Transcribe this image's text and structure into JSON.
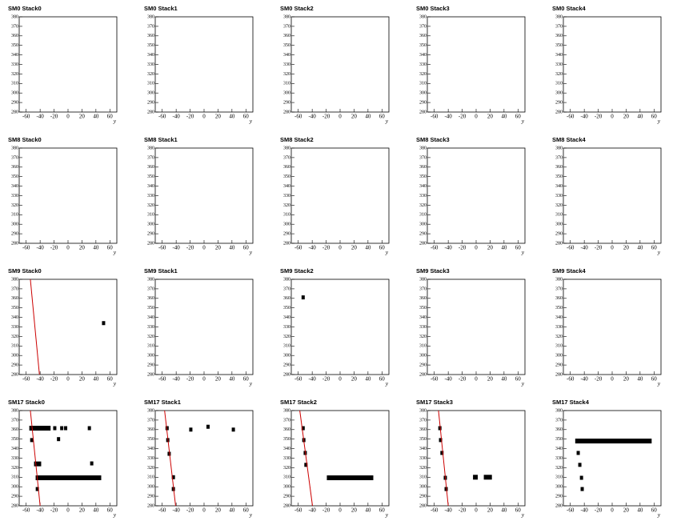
{
  "chart_data": [
    {
      "type": "scatter",
      "title": "SM0 Stack0",
      "x_label": "y",
      "xlim": [
        -70,
        70
      ],
      "ylim": [
        280,
        380
      ],
      "xticks": [
        -60,
        -40,
        -20,
        0,
        20,
        40,
        60
      ],
      "yticks": [
        280,
        290,
        300,
        310,
        320,
        330,
        340,
        350,
        360,
        370,
        380
      ]
    },
    {
      "type": "scatter",
      "title": "SM0 Stack1",
      "x_label": "y",
      "xlim": [
        -70,
        70
      ],
      "ylim": [
        280,
        380
      ],
      "xticks": [
        -60,
        -40,
        -20,
        0,
        20,
        40,
        60
      ],
      "yticks": [
        280,
        290,
        300,
        310,
        320,
        330,
        340,
        350,
        360,
        370,
        380
      ]
    },
    {
      "type": "scatter",
      "title": "SM0 Stack2",
      "x_label": "y",
      "xlim": [
        -70,
        70
      ],
      "ylim": [
        280,
        380
      ],
      "xticks": [
        -60,
        -40,
        -20,
        0,
        20,
        40,
        60
      ],
      "yticks": [
        280,
        290,
        300,
        310,
        320,
        330,
        340,
        350,
        360,
        370,
        380
      ]
    },
    {
      "type": "scatter",
      "title": "SM0 Stack3",
      "x_label": "y",
      "xlim": [
        -70,
        70
      ],
      "ylim": [
        280,
        380
      ],
      "xticks": [
        -60,
        -40,
        -20,
        0,
        20,
        40,
        60
      ],
      "yticks": [
        280,
        290,
        300,
        310,
        320,
        330,
        340,
        350,
        360,
        370,
        380
      ]
    },
    {
      "type": "scatter",
      "title": "SM0 Stack4",
      "x_label": "y",
      "xlim": [
        -70,
        70
      ],
      "ylim": [
        280,
        380
      ],
      "xticks": [
        -60,
        -40,
        -20,
        0,
        20,
        40,
        60
      ],
      "yticks": [
        280,
        290,
        300,
        310,
        320,
        330,
        340,
        350,
        360,
        370,
        380
      ]
    },
    {
      "type": "scatter",
      "title": "SM8 Stack0",
      "x_label": "y",
      "xlim": [
        -70,
        70
      ],
      "ylim": [
        280,
        380
      ],
      "xticks": [
        -60,
        -40,
        -20,
        0,
        20,
        40,
        60
      ],
      "yticks": [
        280,
        290,
        300,
        310,
        320,
        330,
        340,
        350,
        360,
        370,
        380
      ]
    },
    {
      "type": "scatter",
      "title": "SM8 Stack1",
      "x_label": "y",
      "xlim": [
        -70,
        70
      ],
      "ylim": [
        280,
        380
      ],
      "xticks": [
        -60,
        -40,
        -20,
        0,
        20,
        40,
        60
      ],
      "yticks": [
        280,
        290,
        300,
        310,
        320,
        330,
        340,
        350,
        360,
        370,
        380
      ]
    },
    {
      "type": "scatter",
      "title": "SM8 Stack2",
      "x_label": "y",
      "xlim": [
        -70,
        70
      ],
      "ylim": [
        280,
        380
      ],
      "xticks": [
        -60,
        -40,
        -20,
        0,
        20,
        40,
        60
      ],
      "yticks": [
        280,
        290,
        300,
        310,
        320,
        330,
        340,
        350,
        360,
        370,
        380
      ]
    },
    {
      "type": "scatter",
      "title": "SM8 Stack3",
      "x_label": "y",
      "xlim": [
        -70,
        70
      ],
      "ylim": [
        280,
        380
      ],
      "xticks": [
        -60,
        -40,
        -20,
        0,
        20,
        40,
        60
      ],
      "yticks": [
        280,
        290,
        300,
        310,
        320,
        330,
        340,
        350,
        360,
        370,
        380
      ]
    },
    {
      "type": "scatter",
      "title": "SM8 Stack4",
      "x_label": "y",
      "xlim": [
        -70,
        70
      ],
      "ylim": [
        280,
        380
      ],
      "xticks": [
        -60,
        -40,
        -20,
        0,
        20,
        40,
        60
      ],
      "yticks": [
        280,
        290,
        300,
        310,
        320,
        330,
        340,
        350,
        360,
        370,
        380
      ]
    },
    {
      "type": "scatter",
      "title": "SM9 Stack0",
      "x_label": "y",
      "xlim": [
        -70,
        70
      ],
      "ylim": [
        280,
        380
      ],
      "xticks": [
        -60,
        -40,
        -20,
        0,
        20,
        40,
        60
      ],
      "yticks": [
        280,
        290,
        300,
        310,
        320,
        330,
        340,
        350,
        360,
        370,
        380
      ],
      "points": {
        "x": [
          51
        ],
        "y": [
          334
        ]
      },
      "fit": {
        "color": "#cc0000",
        "x": [
          -54,
          -41
        ],
        "y": [
          380,
          280
        ]
      }
    },
    {
      "type": "scatter",
      "title": "SM9 Stack1",
      "x_label": "y",
      "xlim": [
        -70,
        70
      ],
      "ylim": [
        280,
        380
      ],
      "xticks": [
        -60,
        -40,
        -20,
        0,
        20,
        40,
        60
      ],
      "yticks": [
        280,
        290,
        300,
        310,
        320,
        330,
        340,
        350,
        360,
        370,
        380
      ]
    },
    {
      "type": "scatter",
      "title": "SM9 Stack2",
      "x_label": "y",
      "xlim": [
        -70,
        70
      ],
      "ylim": [
        280,
        380
      ],
      "xticks": [
        -60,
        -40,
        -20,
        0,
        20,
        40,
        60
      ],
      "yticks": [
        280,
        290,
        300,
        310,
        320,
        330,
        340,
        350,
        360,
        370,
        380
      ],
      "points": {
        "x": [
          -53
        ],
        "y": [
          361
        ]
      }
    },
    {
      "type": "scatter",
      "title": "SM9 Stack3",
      "x_label": "y",
      "xlim": [
        -70,
        70
      ],
      "ylim": [
        280,
        380
      ],
      "xticks": [
        -60,
        -40,
        -20,
        0,
        20,
        40,
        60
      ],
      "yticks": [
        280,
        290,
        300,
        310,
        320,
        330,
        340,
        350,
        360,
        370,
        380
      ]
    },
    {
      "type": "scatter",
      "title": "SM9 Stack4",
      "x_label": "y",
      "xlim": [
        -70,
        70
      ],
      "ylim": [
        280,
        380
      ],
      "xticks": [
        -60,
        -40,
        -20,
        0,
        20,
        40,
        60
      ],
      "yticks": [
        280,
        290,
        300,
        310,
        320,
        330,
        340,
        350,
        360,
        370,
        380
      ]
    },
    {
      "type": "scatter",
      "title": "SM17 Stack0",
      "x_label": "y",
      "xlim": [
        -70,
        70
      ],
      "ylim": [
        280,
        380
      ],
      "xticks": [
        -60,
        -40,
        -20,
        0,
        20,
        40,
        60
      ],
      "yticks": [
        280,
        290,
        300,
        310,
        320,
        330,
        340,
        350,
        360,
        370,
        380
      ],
      "points": {
        "x": [
          -19,
          -9,
          -3.4,
          30.6,
          -52,
          -13.6,
          34,
          -44
        ],
        "y": [
          361.5,
          361.5,
          361.5,
          361.5,
          349,
          350,
          324.5,
          297.6
        ]
      },
      "segments": {
        "x0": [
          -55.5,
          -48.7,
          -46.4
        ],
        "x1": [
          -25,
          -38.5,
          47.6
        ],
        "y": [
          361.5,
          324,
          309.4
        ]
      },
      "fit": {
        "color": "#cc0000",
        "x": [
          -54,
          -40
        ],
        "y": [
          380,
          280
        ]
      }
    },
    {
      "type": "scatter",
      "title": "SM17 Stack1",
      "x_label": "y",
      "xlim": [
        -70,
        70
      ],
      "ylim": [
        280,
        380
      ],
      "xticks": [
        -60,
        -40,
        -20,
        0,
        20,
        40,
        60
      ],
      "yticks": [
        280,
        290,
        300,
        310,
        320,
        330,
        340,
        350,
        360,
        370,
        380
      ],
      "points": {
        "x": [
          -53,
          -52,
          -50,
          -44,
          -44,
          -19,
          5.7,
          42
        ],
        "y": [
          361.5,
          349,
          334.6,
          310,
          297.6,
          360,
          363,
          360
        ]
      },
      "fit": {
        "color": "#cc0000",
        "x": [
          -56.6,
          -40.8
        ],
        "y": [
          380,
          280
        ]
      }
    },
    {
      "type": "scatter",
      "title": "SM17 Stack2",
      "x_label": "y",
      "xlim": [
        -70,
        70
      ],
      "ylim": [
        280,
        380
      ],
      "xticks": [
        -60,
        -40,
        -20,
        0,
        20,
        40,
        60
      ],
      "yticks": [
        280,
        290,
        300,
        310,
        320,
        330,
        340,
        350,
        360,
        370,
        380
      ],
      "points": {
        "x": [
          -53,
          -52,
          -50,
          -49
        ],
        "y": [
          361.5,
          349,
          335.5,
          323
        ]
      },
      "segments": {
        "x0": [
          -19
        ],
        "x1": [
          47.6
        ],
        "y": [
          309.4
        ]
      },
      "fit": {
        "color": "#cc0000",
        "x": [
          -57.8,
          -39.6
        ],
        "y": [
          380,
          280
        ]
      }
    },
    {
      "type": "scatter",
      "title": "SM17 Stack3",
      "x_label": "y",
      "xlim": [
        -70,
        70
      ],
      "ylim": [
        280,
        380
      ],
      "xticks": [
        -60,
        -40,
        -20,
        0,
        20,
        40,
        60
      ],
      "yticks": [
        280,
        290,
        300,
        310,
        320,
        330,
        340,
        350,
        360,
        370,
        380
      ],
      "points": {
        "x": [
          -52,
          -51,
          -49,
          -44.2,
          -43
        ],
        "y": [
          361.5,
          349,
          335.5,
          309.4,
          297.6
        ]
      },
      "segments": {
        "x0": [
          -4.5,
          11
        ],
        "x1": [
          2.3,
          22.6
        ],
        "y": [
          310,
          310
        ]
      },
      "fit": {
        "color": "#cc0000",
        "x": [
          -54,
          -40
        ],
        "y": [
          380,
          280
        ]
      }
    },
    {
      "type": "scatter",
      "title": "SM17 Stack4",
      "x_label": "y",
      "xlim": [
        -70,
        70
      ],
      "ylim": [
        280,
        380
      ],
      "xticks": [
        -60,
        -40,
        -20,
        0,
        20,
        40,
        60
      ],
      "yticks": [
        280,
        290,
        300,
        310,
        320,
        330,
        340,
        350,
        360,
        370,
        380
      ],
      "points": {
        "x": [
          -48.7,
          -46.4,
          -44,
          -43
        ],
        "y": [
          335.5,
          323,
          309.4,
          297.6
        ]
      },
      "segments": {
        "x0": [
          -53
        ],
        "x1": [
          56.6
        ],
        "y": [
          348
        ]
      }
    }
  ]
}
